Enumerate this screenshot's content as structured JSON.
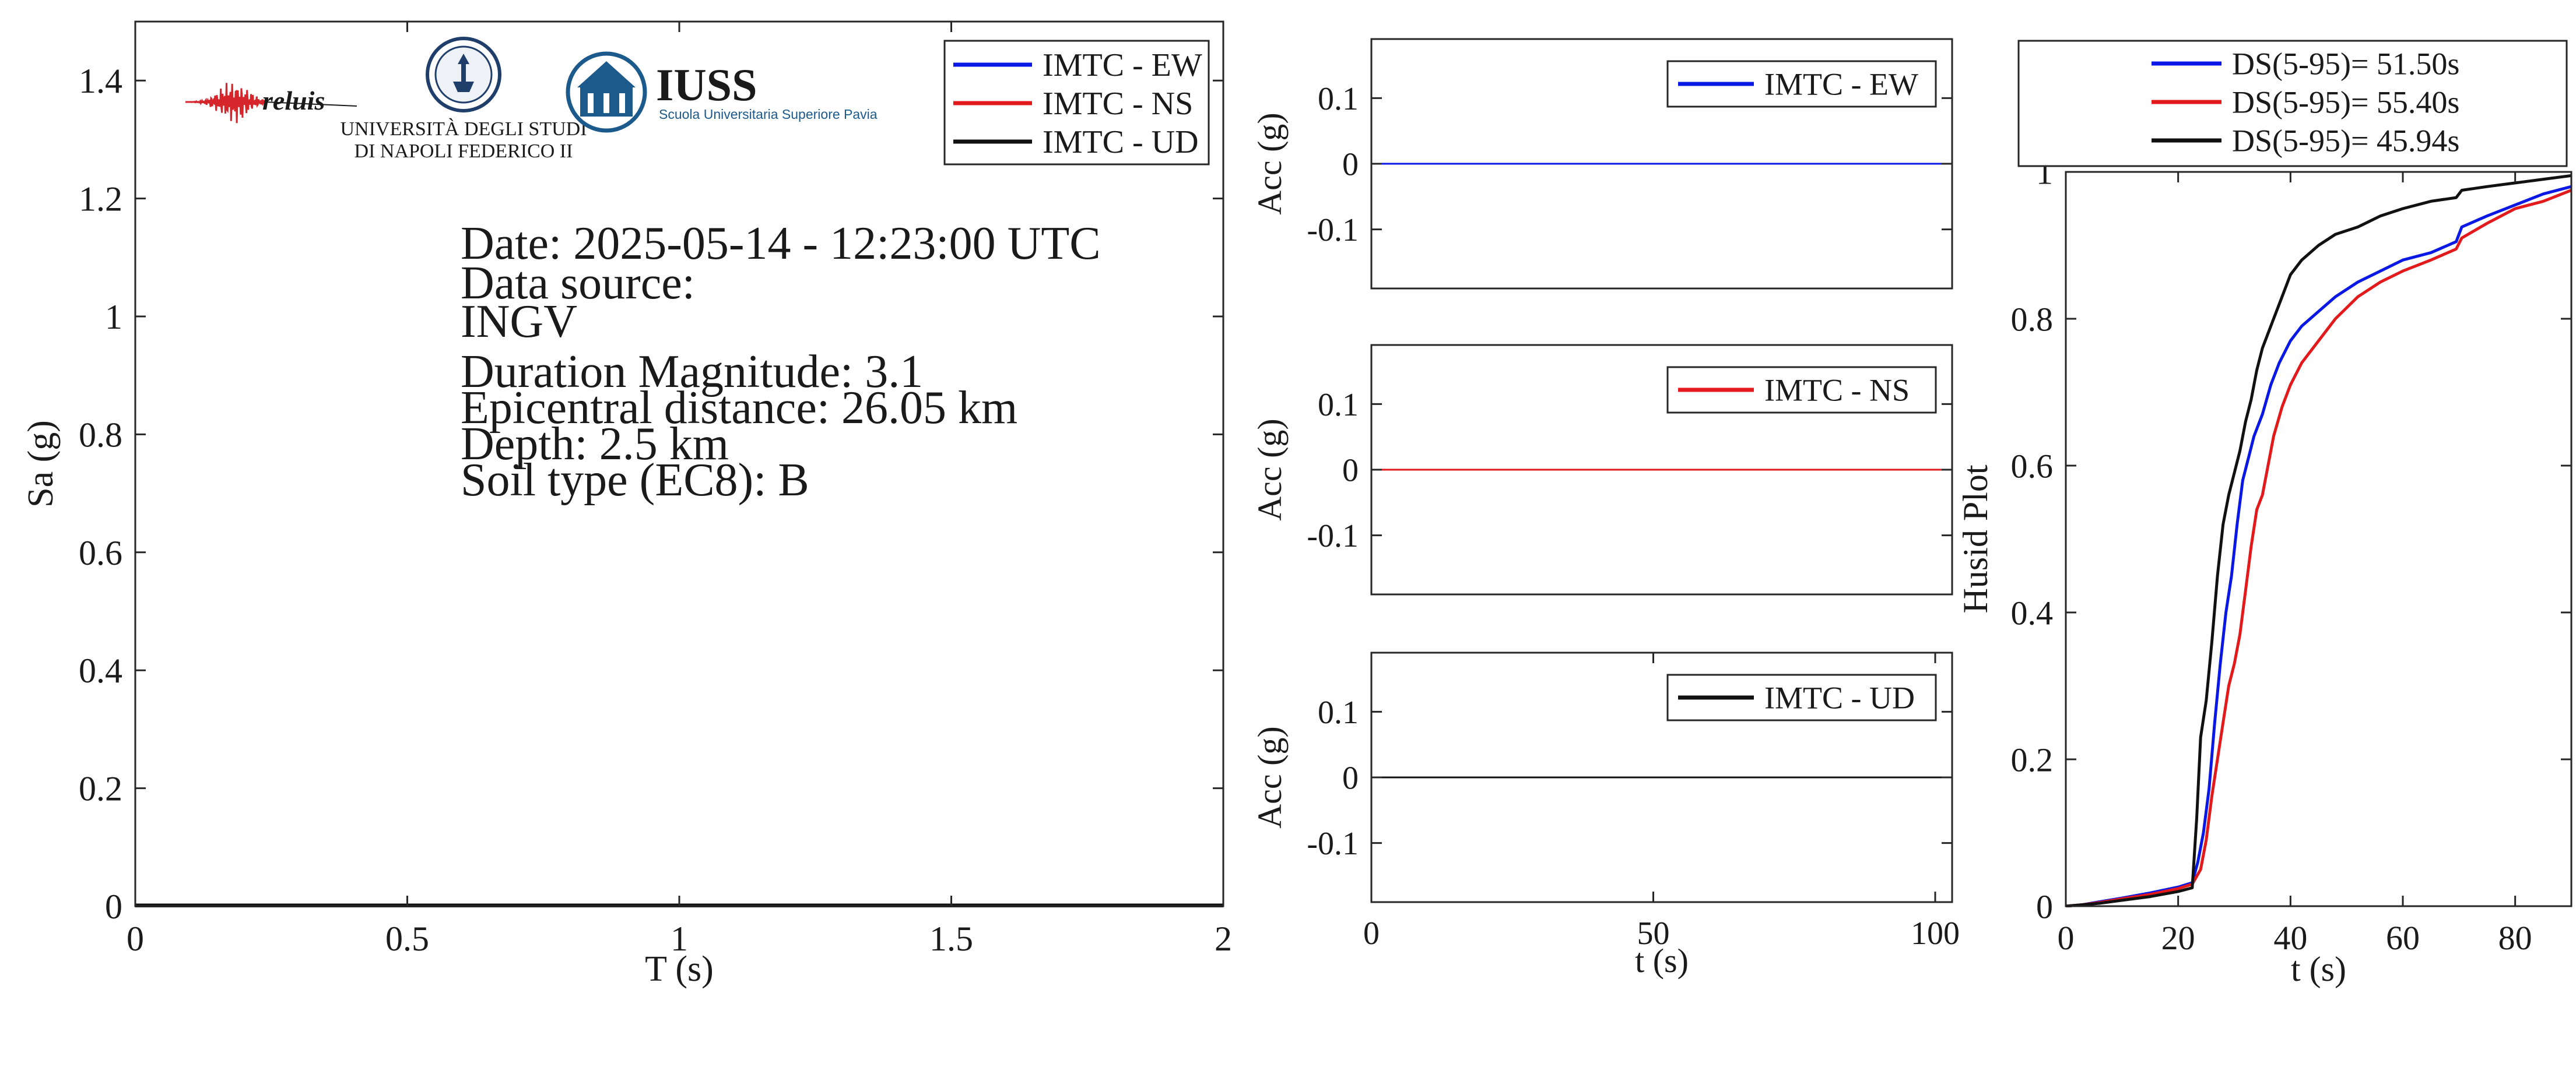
{
  "colors": {
    "ew": "#0a18e6",
    "ns": "#e31a1c",
    "ud": "#111111",
    "axis": "#262626",
    "iuss_blue": "#1d5a8c",
    "reluis_red": "#d7262b"
  },
  "logos": {
    "reluis": "reluis",
    "unina_line1": "UNIVERSITÀ DEGLI STUDI",
    "unina_line2": "DI NAPOLI FEDERICO II",
    "iuss_title": "IUSS",
    "iuss_subtitle": "Scuola Universitaria Superiore Pavia"
  },
  "info": {
    "date": "Date: 2025-05-14 - 12:23:00 UTC",
    "source_label": "Data source:",
    "source": "INGV",
    "magnitude": "Duration Magnitude: 3.1",
    "distance": "Epicentral distance: 26.05 km",
    "depth": "Depth: 2.5 km",
    "soil": "Soil type (EC8): B"
  },
  "chart_data": [
    {
      "id": "spectrum",
      "type": "line",
      "xlabel": "T (s)",
      "ylabel": "Sa (g)",
      "xlim": [
        0,
        2
      ],
      "ylim": [
        0,
        1.5
      ],
      "xticks": [
        0,
        0.5,
        1,
        1.5,
        2
      ],
      "xtick_labels": [
        "0",
        "0.5",
        "1",
        "1.5",
        "2"
      ],
      "yticks": [
        0,
        0.2,
        0.4,
        0.6,
        0.8,
        1,
        1.2,
        1.4
      ],
      "ytick_labels": [
        "0",
        "0.2",
        "0.4",
        "0.6",
        "0.8",
        "1",
        "1.2",
        "1.4"
      ],
      "legend_position": "top-right",
      "series": [
        {
          "name": "IMTC - EW",
          "color": "ew",
          "x": [
            0,
            2
          ],
          "y": [
            0.001,
            0.001
          ]
        },
        {
          "name": "IMTC - NS",
          "color": "ns",
          "x": [
            0,
            2
          ],
          "y": [
            0.001,
            0.001
          ]
        },
        {
          "name": "IMTC - UD",
          "color": "ud",
          "x": [
            0,
            2
          ],
          "y": [
            0.001,
            0.001
          ]
        }
      ]
    },
    {
      "id": "acc_ew",
      "type": "line",
      "xlabel": "",
      "ylabel": "Acc (g)",
      "xlim": [
        0,
        103
      ],
      "ylim": [
        -0.19,
        0.19
      ],
      "yticks": [
        -0.1,
        0,
        0.1
      ],
      "ytick_labels": [
        "-0.1",
        "0",
        "0.1"
      ],
      "legend_position": "top-right",
      "series": [
        {
          "name": "IMTC - EW",
          "color": "ew",
          "x": [
            0,
            103
          ],
          "y": [
            0,
            0
          ]
        }
      ]
    },
    {
      "id": "acc_ns",
      "type": "line",
      "xlabel": "",
      "ylabel": "Acc (g)",
      "xlim": [
        0,
        103
      ],
      "ylim": [
        -0.19,
        0.19
      ],
      "yticks": [
        -0.1,
        0,
        0.1
      ],
      "ytick_labels": [
        "-0.1",
        "0",
        "0.1"
      ],
      "legend_position": "top-right",
      "series": [
        {
          "name": "IMTC - NS",
          "color": "ns",
          "x": [
            0,
            103
          ],
          "y": [
            0,
            0
          ]
        }
      ]
    },
    {
      "id": "acc_ud",
      "type": "line",
      "xlabel": "t (s)",
      "ylabel": "Acc (g)",
      "xlim": [
        0,
        103
      ],
      "ylim": [
        -0.19,
        0.19
      ],
      "xticks": [
        0,
        50,
        100
      ],
      "xtick_labels": [
        "0",
        "50",
        "100"
      ],
      "yticks": [
        -0.1,
        0,
        0.1
      ],
      "ytick_labels": [
        "-0.1",
        "0",
        "0.1"
      ],
      "legend_position": "top-right",
      "series": [
        {
          "name": "IMTC - UD",
          "color": "ud",
          "x": [
            0,
            103
          ],
          "y": [
            0,
            0
          ]
        }
      ]
    },
    {
      "id": "husid",
      "type": "line",
      "xlabel": "t (s)",
      "ylabel": "Husid Plot",
      "xlim": [
        0,
        90
      ],
      "ylim": [
        0,
        1
      ],
      "xticks": [
        0,
        20,
        40,
        60,
        80
      ],
      "xtick_labels": [
        "0",
        "20",
        "40",
        "60",
        "80"
      ],
      "yticks": [
        0,
        0.2,
        0.4,
        0.6,
        0.8,
        1
      ],
      "ytick_labels": [
        "0",
        "0.2",
        "0.4",
        "0.6",
        "0.8",
        "1"
      ],
      "legend_position": "outside-top",
      "series": [
        {
          "name": "DS(5-95)= 51.50s",
          "color": "ew",
          "x": [
            0,
            3,
            6,
            10,
            15,
            20,
            22.5,
            23.5,
            24.5,
            25.5,
            26.5,
            27.5,
            28.5,
            29.5,
            30.5,
            31.5,
            32.5,
            33.5,
            35,
            36.5,
            38,
            40,
            42,
            45,
            48,
            52,
            56,
            60,
            65,
            69.5,
            70.5,
            75,
            80,
            85,
            90
          ],
          "y": [
            0,
            0.002,
            0.006,
            0.011,
            0.018,
            0.026,
            0.032,
            0.06,
            0.1,
            0.16,
            0.25,
            0.33,
            0.4,
            0.45,
            0.52,
            0.58,
            0.61,
            0.64,
            0.67,
            0.71,
            0.74,
            0.77,
            0.79,
            0.81,
            0.83,
            0.85,
            0.865,
            0.88,
            0.89,
            0.905,
            0.925,
            0.94,
            0.955,
            0.97,
            0.98
          ]
        },
        {
          "name": "DS(5-95)= 55.40s",
          "color": "ns",
          "x": [
            0,
            3,
            6,
            10,
            15,
            20,
            22.5,
            24,
            25,
            26,
            27,
            28,
            29,
            30,
            31,
            32,
            33,
            34,
            35,
            36,
            37,
            38.5,
            40,
            42,
            45,
            48,
            52,
            56,
            60,
            65,
            69.5,
            70.5,
            75,
            80,
            85,
            90
          ],
          "y": [
            0,
            0.002,
            0.005,
            0.01,
            0.016,
            0.024,
            0.03,
            0.05,
            0.09,
            0.15,
            0.2,
            0.25,
            0.3,
            0.33,
            0.37,
            0.43,
            0.49,
            0.54,
            0.56,
            0.6,
            0.64,
            0.68,
            0.71,
            0.74,
            0.77,
            0.8,
            0.83,
            0.85,
            0.865,
            0.88,
            0.895,
            0.91,
            0.93,
            0.95,
            0.96,
            0.975
          ]
        },
        {
          "name": "DS(5-95)= 45.94s",
          "color": "ud",
          "x": [
            0,
            3,
            6,
            10,
            15,
            20,
            22.5,
            23.3,
            24,
            25,
            26,
            27,
            28,
            29,
            30,
            31,
            32,
            33,
            34,
            35,
            36,
            37,
            38.5,
            40,
            42,
            45,
            48,
            52,
            56,
            60,
            65,
            69.5,
            70.5,
            75,
            80,
            85,
            90
          ],
          "y": [
            0,
            0.002,
            0.004,
            0.008,
            0.013,
            0.02,
            0.025,
            0.12,
            0.23,
            0.28,
            0.36,
            0.45,
            0.52,
            0.56,
            0.59,
            0.62,
            0.66,
            0.69,
            0.73,
            0.76,
            0.78,
            0.8,
            0.83,
            0.86,
            0.88,
            0.9,
            0.915,
            0.925,
            0.94,
            0.95,
            0.96,
            0.965,
            0.975,
            0.98,
            0.985,
            0.99,
            0.995
          ]
        }
      ]
    }
  ]
}
